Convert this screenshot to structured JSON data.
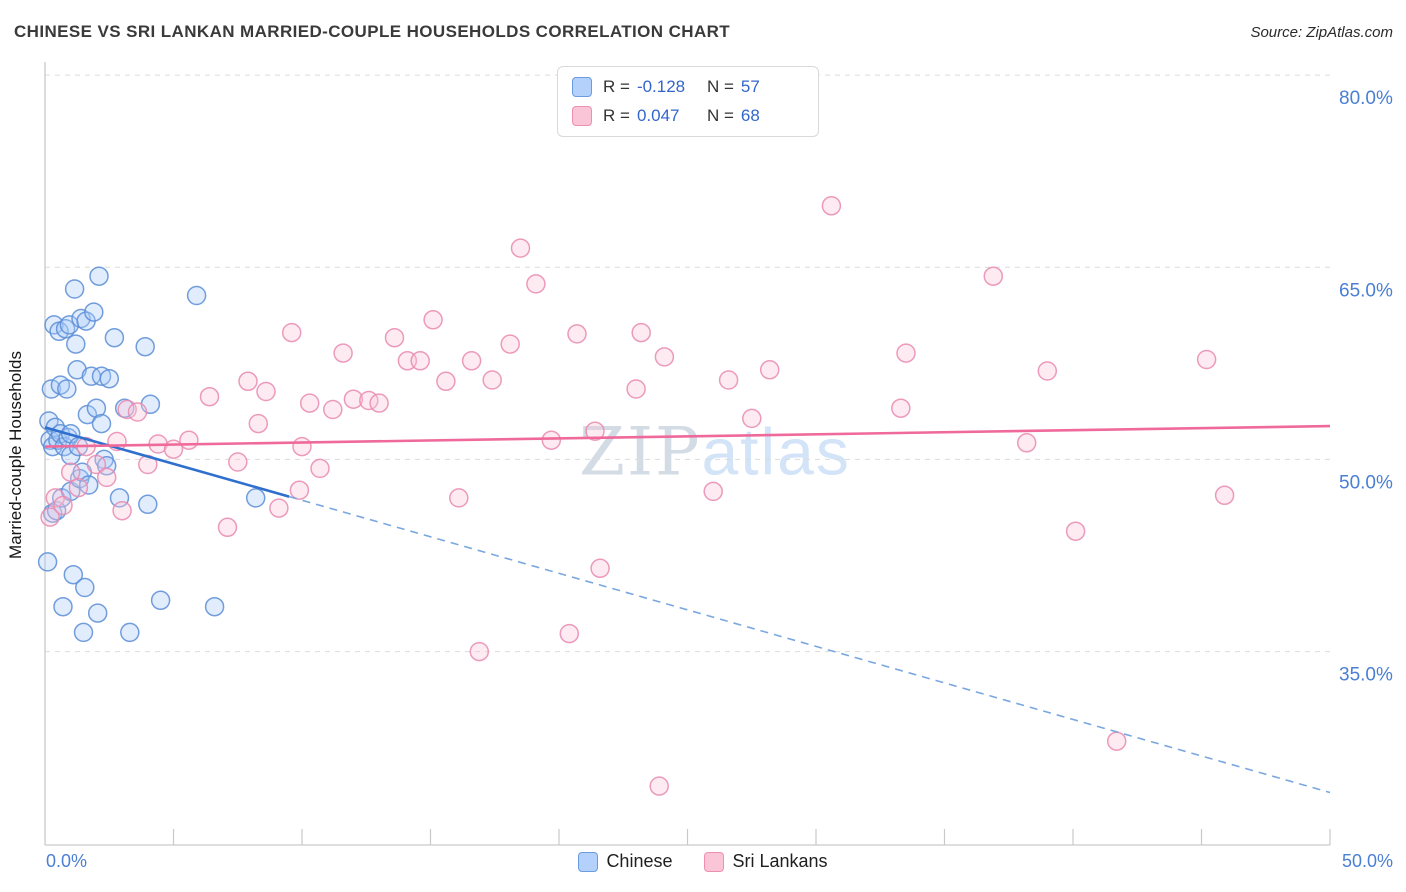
{
  "header": {
    "title": "CHINESE VS SRI LANKAN MARRIED-COUPLE HOUSEHOLDS CORRELATION CHART",
    "source": "Source: ZipAtlas.com"
  },
  "watermark": {
    "zip": "ZIP",
    "atlas": "atlas"
  },
  "legend_box": {
    "rows": [
      {
        "series": "chinese",
        "r_label": "R =",
        "r_value": "-0.128",
        "n_label": "N =",
        "n_value": "57"
      },
      {
        "series": "sri_lankans",
        "r_label": "R =",
        "r_value": "0.047",
        "n_label": "N =",
        "n_value": "68"
      }
    ]
  },
  "bottom_legend": {
    "chinese": "Chinese",
    "sri_lankans": "Sri Lankans"
  },
  "axes": {
    "y_axis_label": "Married-couple Households",
    "x_min_label": "0.0%",
    "x_max_label": "50.0%"
  },
  "colors": {
    "chinese_fill": "#a9ccf9",
    "chinese_stroke": "#5b8dd6",
    "sri_fill": "#f9c6d8",
    "sri_stroke": "#e98ab0",
    "chinese_trend": "#2f6fce",
    "chinese_trend_dashed": "#7aa7e0",
    "sri_trend": "#ef6a9a",
    "axis_label_blue": "#4a7fd4"
  },
  "chart_data": {
    "type": "scatter",
    "title": "CHINESE VS SRI LANKAN MARRIED-COUPLE HOUSEHOLDS CORRELATION CHART",
    "xlabel": "",
    "ylabel": "Married-couple Households",
    "xlim": [
      0,
      50
    ],
    "ylim": [
      19.9,
      80.4
    ],
    "xtick_step": 5,
    "grid": "horizontal-dashed",
    "legend_position": "top-center",
    "yticks": [
      {
        "value": 80,
        "label": "80.0%"
      },
      {
        "value": 65,
        "label": "65.0%"
      },
      {
        "value": 50,
        "label": "50.0%"
      },
      {
        "value": 35,
        "label": "35.0%"
      }
    ],
    "series": [
      {
        "name": "Chinese",
        "r": -0.128,
        "n": 57,
        "fill": "#a9ccf9",
        "stroke": "#5b8dd6",
        "points": [
          [
            0.1,
            42.0
          ],
          [
            0.15,
            53.0
          ],
          [
            0.2,
            51.5
          ],
          [
            0.25,
            55.5
          ],
          [
            0.3,
            51.0
          ],
          [
            0.3,
            45.8
          ],
          [
            0.35,
            60.5
          ],
          [
            0.4,
            52.5
          ],
          [
            0.45,
            46.0
          ],
          [
            0.5,
            51.5
          ],
          [
            0.55,
            60.0
          ],
          [
            0.6,
            52.0
          ],
          [
            0.6,
            55.8
          ],
          [
            0.65,
            47.0
          ],
          [
            0.7,
            38.5
          ],
          [
            0.75,
            51.0
          ],
          [
            0.8,
            60.2
          ],
          [
            0.85,
            55.5
          ],
          [
            0.9,
            51.7
          ],
          [
            0.95,
            60.5
          ],
          [
            1.0,
            52.0
          ],
          [
            1.0,
            47.5
          ],
          [
            1.0,
            50.3
          ],
          [
            1.1,
            41.0
          ],
          [
            1.15,
            63.3
          ],
          [
            1.2,
            59.0
          ],
          [
            1.25,
            57.0
          ],
          [
            1.3,
            51.0
          ],
          [
            1.35,
            48.5
          ],
          [
            1.4,
            61.0
          ],
          [
            1.45,
            49.0
          ],
          [
            1.5,
            36.5
          ],
          [
            1.55,
            40.0
          ],
          [
            1.6,
            60.8
          ],
          [
            1.65,
            53.5
          ],
          [
            1.7,
            48.0
          ],
          [
            1.8,
            56.5
          ],
          [
            1.9,
            61.5
          ],
          [
            2.0,
            54.0
          ],
          [
            2.05,
            38.0
          ],
          [
            2.1,
            64.3
          ],
          [
            2.2,
            56.5
          ],
          [
            2.2,
            52.8
          ],
          [
            2.3,
            50.0
          ],
          [
            2.4,
            49.5
          ],
          [
            2.5,
            56.3
          ],
          [
            2.7,
            59.5
          ],
          [
            2.9,
            47.0
          ],
          [
            3.1,
            54.0
          ],
          [
            3.3,
            36.5
          ],
          [
            3.9,
            58.8
          ],
          [
            4.0,
            46.5
          ],
          [
            4.1,
            54.3
          ],
          [
            4.5,
            39.0
          ],
          [
            5.9,
            62.8
          ],
          [
            6.6,
            38.5
          ],
          [
            8.2,
            47.0
          ]
        ]
      },
      {
        "name": "Sri Lankans",
        "r": 0.047,
        "n": 68,
        "fill": "#f9c6d8",
        "stroke": "#e98ab0",
        "points": [
          [
            0.2,
            45.5
          ],
          [
            0.4,
            47.0
          ],
          [
            0.7,
            46.4
          ],
          [
            1.0,
            49.0
          ],
          [
            1.3,
            47.8
          ],
          [
            1.6,
            51.0
          ],
          [
            2.0,
            49.6
          ],
          [
            2.4,
            48.6
          ],
          [
            2.8,
            51.4
          ],
          [
            3.0,
            46.0
          ],
          [
            3.2,
            53.9
          ],
          [
            3.6,
            53.7
          ],
          [
            4.0,
            49.6
          ],
          [
            4.4,
            51.2
          ],
          [
            5.0,
            50.8
          ],
          [
            5.6,
            51.5
          ],
          [
            6.4,
            54.9
          ],
          [
            7.1,
            44.7
          ],
          [
            7.5,
            49.8
          ],
          [
            7.9,
            56.1
          ],
          [
            8.3,
            52.8
          ],
          [
            8.6,
            55.3
          ],
          [
            9.1,
            46.2
          ],
          [
            9.6,
            59.9
          ],
          [
            9.9,
            47.6
          ],
          [
            10.0,
            51.0
          ],
          [
            10.3,
            54.4
          ],
          [
            10.7,
            49.3
          ],
          [
            11.2,
            53.9
          ],
          [
            11.6,
            58.3
          ],
          [
            12.0,
            54.7
          ],
          [
            12.6,
            54.6
          ],
          [
            13.0,
            54.4
          ],
          [
            13.6,
            59.5
          ],
          [
            14.1,
            57.7
          ],
          [
            14.6,
            57.7
          ],
          [
            15.1,
            60.9
          ],
          [
            15.6,
            56.1
          ],
          [
            16.1,
            47.0
          ],
          [
            16.6,
            57.7
          ],
          [
            16.9,
            35.0
          ],
          [
            17.4,
            56.2
          ],
          [
            18.1,
            59.0
          ],
          [
            18.5,
            66.5
          ],
          [
            19.1,
            63.7
          ],
          [
            19.7,
            51.5
          ],
          [
            20.4,
            36.4
          ],
          [
            20.7,
            59.8
          ],
          [
            21.4,
            52.2
          ],
          [
            21.6,
            41.5
          ],
          [
            23.0,
            55.5
          ],
          [
            23.2,
            59.9
          ],
          [
            23.9,
            24.5
          ],
          [
            24.1,
            58.0
          ],
          [
            26.0,
            47.5
          ],
          [
            26.6,
            56.2
          ],
          [
            27.5,
            53.2
          ],
          [
            28.2,
            57.0
          ],
          [
            30.6,
            69.8
          ],
          [
            33.3,
            54.0
          ],
          [
            33.5,
            58.3
          ],
          [
            36.9,
            64.3
          ],
          [
            38.2,
            51.3
          ],
          [
            39.0,
            56.9
          ],
          [
            40.1,
            44.4
          ],
          [
            41.7,
            28.0
          ],
          [
            45.2,
            57.8
          ],
          [
            45.9,
            47.2
          ]
        ]
      }
    ],
    "trends": {
      "chinese": {
        "color": "#2f6fce",
        "dashed_color": "#7aa7e0",
        "solid": [
          [
            0,
            52.5
          ],
          [
            9.5,
            47.1
          ]
        ],
        "dashed": [
          [
            9.5,
            47.1
          ],
          [
            50,
            24.0
          ]
        ]
      },
      "sri_lankans": {
        "color": "#ef6a9a",
        "line": [
          [
            0,
            51.0
          ],
          [
            50,
            52.6
          ]
        ]
      }
    }
  }
}
